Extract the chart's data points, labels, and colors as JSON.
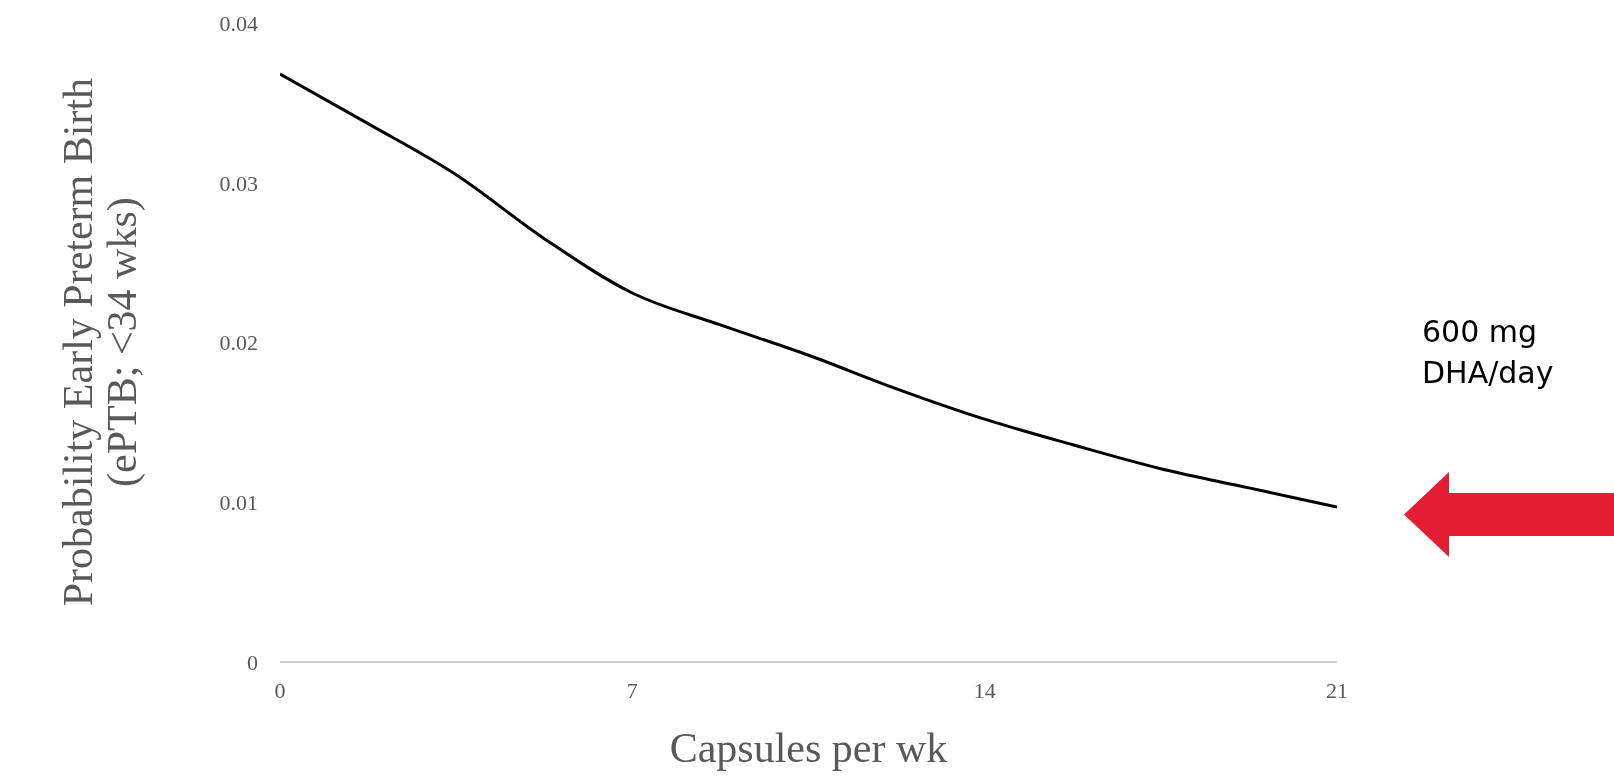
{
  "chart_data": {
    "type": "line",
    "xlabel": "Capsules per wk",
    "ylabel": "Probability Early Preterm Birth\n(ePTB; <34 wks)",
    "x": [
      0,
      1.75,
      3.5,
      5.25,
      7,
      8.75,
      10.5,
      12.25,
      14,
      15.75,
      17.5,
      19.25,
      21
    ],
    "series": [
      {
        "color": "#000000",
        "values": [
          0.0368,
          0.0337,
          0.0305,
          0.0265,
          0.0231,
          0.0211,
          0.0192,
          0.0171,
          0.0152,
          0.0136,
          0.0121,
          0.0109,
          0.0097
        ]
      }
    ],
    "xlim": [
      0,
      21
    ],
    "xticks": [
      0,
      7,
      14,
      21
    ],
    "ylim": [
      0,
      0.04
    ],
    "yticks": [
      0,
      0.01,
      0.02,
      0.03,
      0.04
    ],
    "grid": false,
    "legend": false,
    "marker": "none",
    "line_style": "solid",
    "annotations": [
      "600 mg DHA/day"
    ]
  }
}
